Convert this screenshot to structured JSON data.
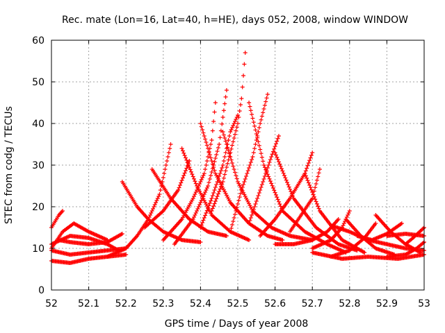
{
  "chart_data": {
    "type": "scatter",
    "title": "Rec. mate (Lon=16, Lat=40, h=HE), days 052, 2008, window WINDOW",
    "xlabel": "GPS time / Days of year 2008",
    "ylabel": "STEC from codg / TECUs",
    "xlim": [
      52,
      53
    ],
    "ylim": [
      0,
      60
    ],
    "x_ticks": [
      "52",
      "52.1",
      "52.2",
      "52.3",
      "52.4",
      "52.5",
      "52.6",
      "52.7",
      "52.8",
      "52.9",
      "53"
    ],
    "y_ticks": [
      "0",
      "10",
      "20",
      "30",
      "40",
      "50",
      "60"
    ],
    "grid": true,
    "marker": "+",
    "series_color": "#ff0000",
    "tracks": [
      {
        "x": [
          52.0,
          52.01,
          52.02,
          52.03
        ],
        "y": [
          15.0,
          16.5,
          18.0,
          19.0
        ]
      },
      {
        "x": [
          52.0,
          52.05,
          52.1,
          52.15,
          52.18
        ],
        "y": [
          11.0,
          13.0,
          12.5,
          11.0,
          9.5
        ]
      },
      {
        "x": [
          52.0,
          52.05,
          52.1,
          52.15,
          52.2
        ],
        "y": [
          7.0,
          6.5,
          7.5,
          8.0,
          8.5
        ]
      },
      {
        "x": [
          52.0,
          52.05,
          52.1,
          52.15,
          52.2
        ],
        "y": [
          9.5,
          8.5,
          9.0,
          9.5,
          10.0
        ]
      },
      {
        "x": [
          52.02,
          52.05,
          52.1,
          52.15,
          52.19
        ],
        "y": [
          12.0,
          11.5,
          11.0,
          11.5,
          13.5
        ]
      },
      {
        "x": [
          52.0,
          52.03,
          52.06,
          52.1,
          52.15
        ],
        "y": [
          10.0,
          14.0,
          16.0,
          14.0,
          12.0
        ]
      },
      {
        "x": [
          52.15,
          52.2,
          52.23,
          52.26,
          52.29,
          52.32
        ],
        "y": [
          8.0,
          10.0,
          13.0,
          17.0,
          23.0,
          35.0
        ]
      },
      {
        "x": [
          52.25,
          52.3,
          52.34,
          52.37
        ],
        "y": [
          15.0,
          19.0,
          24.0,
          31.0
        ]
      },
      {
        "x": [
          52.3,
          52.35,
          52.38,
          52.41,
          52.43,
          52.44
        ],
        "y": [
          12.0,
          17.0,
          22.0,
          28.0,
          36.0,
          45.0
        ]
      },
      {
        "x": [
          52.33,
          52.38,
          52.42,
          52.45,
          52.47
        ],
        "y": [
          11.0,
          17.0,
          25.0,
          35.0,
          48.0
        ]
      },
      {
        "x": [
          52.4,
          52.43,
          52.46,
          52.48,
          52.5
        ],
        "y": [
          15.0,
          22.0,
          30.0,
          38.0,
          42.0
        ]
      },
      {
        "x": [
          52.43,
          52.46,
          52.48,
          52.5,
          52.51,
          52.52
        ],
        "y": [
          19.0,
          26.0,
          33.0,
          40.0,
          46.0,
          57.0
        ]
      },
      {
        "x": [
          52.48,
          52.51,
          52.54,
          52.56,
          52.58
        ],
        "y": [
          14.0,
          24.0,
          32.0,
          40.0,
          47.0
        ]
      },
      {
        "x": [
          52.53,
          52.56,
          52.59,
          52.61
        ],
        "y": [
          16.0,
          24.0,
          32.0,
          37.0
        ]
      },
      {
        "x": [
          52.56,
          52.6,
          52.64,
          52.68,
          52.7
        ],
        "y": [
          13.0,
          17.0,
          22.0,
          28.0,
          33.0
        ]
      },
      {
        "x": [
          52.64,
          52.67,
          52.7,
          52.72
        ],
        "y": [
          14.0,
          18.0,
          22.0,
          29.0
        ]
      },
      {
        "x": [
          52.19,
          52.23,
          52.26,
          52.3,
          52.35,
          52.4
        ],
        "y": [
          26.0,
          20.0,
          17.0,
          14.0,
          12.0,
          11.5
        ]
      },
      {
        "x": [
          52.27,
          52.32,
          52.37,
          52.42,
          52.47
        ],
        "y": [
          29.0,
          22.0,
          17.0,
          14.0,
          13.0
        ]
      },
      {
        "x": [
          52.35,
          52.39,
          52.43,
          52.48,
          52.53
        ],
        "y": [
          34.0,
          25.0,
          18.0,
          14.0,
          12.0
        ]
      },
      {
        "x": [
          52.4,
          52.44,
          52.48,
          52.53,
          52.58,
          52.62
        ],
        "y": [
          40.0,
          28.0,
          21.0,
          16.0,
          13.0,
          12.0
        ]
      },
      {
        "x": [
          52.46,
          52.5,
          52.54,
          52.59,
          52.64,
          52.7
        ],
        "y": [
          38.0,
          26.0,
          19.0,
          15.0,
          13.0,
          12.0
        ]
      },
      {
        "x": [
          52.53,
          52.57,
          52.62,
          52.68,
          52.74,
          52.79
        ],
        "y": [
          45.0,
          30.0,
          19.0,
          14.0,
          11.0,
          9.0
        ]
      },
      {
        "x": [
          52.6,
          52.65,
          52.71,
          52.77,
          52.82
        ],
        "y": [
          33.0,
          22.0,
          15.0,
          11.0,
          9.5
        ]
      },
      {
        "x": [
          52.68,
          52.72,
          52.78,
          52.84
        ],
        "y": [
          28.0,
          19.0,
          12.0,
          9.0
        ]
      },
      {
        "x": [
          52.6,
          52.65,
          52.7,
          52.74,
          52.77
        ],
        "y": [
          11.0,
          11.0,
          12.0,
          14.0,
          17.0
        ]
      },
      {
        "x": [
          52.7,
          52.75,
          52.78,
          52.8
        ],
        "y": [
          10.0,
          12.0,
          15.0,
          19.0
        ]
      },
      {
        "x": [
          52.75,
          52.8,
          52.84,
          52.87
        ],
        "y": [
          8.0,
          9.5,
          12.5,
          16.0
        ]
      },
      {
        "x": [
          52.79,
          52.83,
          52.87,
          52.92
        ],
        "y": [
          17.0,
          13.0,
          10.0,
          8.5
        ]
      },
      {
        "x": [
          52.82,
          52.86,
          52.9,
          52.94
        ],
        "y": [
          13.0,
          12.0,
          13.5,
          16.0
        ]
      },
      {
        "x": [
          52.87,
          52.91,
          52.95,
          52.99
        ],
        "y": [
          18.0,
          14.0,
          11.0,
          9.0
        ]
      },
      {
        "x": [
          52.9,
          52.95,
          52.98,
          53.0
        ],
        "y": [
          8.0,
          8.5,
          10.0,
          11.5
        ]
      },
      {
        "x": [
          52.95,
          52.97,
          53.0
        ],
        "y": [
          11.0,
          12.5,
          15.0
        ]
      },
      {
        "x": [
          52.7,
          52.78,
          52.85,
          52.93,
          53.0
        ],
        "y": [
          9.0,
          7.5,
          8.0,
          7.5,
          8.5
        ]
      },
      {
        "x": [
          52.75,
          52.8,
          52.85,
          52.9,
          52.95,
          53.0
        ],
        "y": [
          15.5,
          14.0,
          12.0,
          11.0,
          10.0,
          9.5
        ]
      },
      {
        "x": [
          52.9,
          52.95,
          53.0
        ],
        "y": [
          13.0,
          13.5,
          13.0
        ]
      }
    ]
  }
}
